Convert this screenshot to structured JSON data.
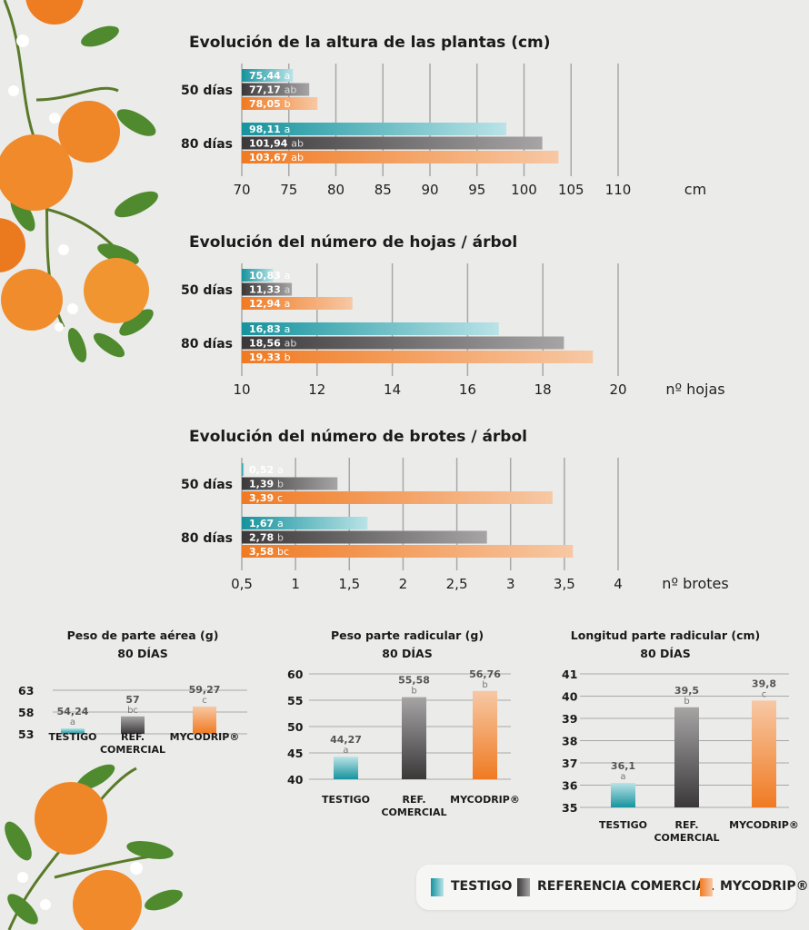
{
  "colors": {
    "testigo": [
      "#16939d",
      "#b9e3e7"
    ],
    "referencia": [
      "#3a3839",
      "#a6a4a5"
    ],
    "mycodrip": [
      "#f07a22",
      "#f7c8a4"
    ],
    "grid": "#a8a8a8",
    "label_dark": "#555555"
  },
  "decorations": [
    "orange-branch-top-left",
    "orange-branch-bottom-left"
  ],
  "legend": [
    {
      "label": "TESTIGO",
      "key": "testigo"
    },
    {
      "label": "REFERENCIA COMERCIAL",
      "key": "referencia"
    },
    {
      "label": "MYCODRIP®",
      "key": "mycodrip"
    }
  ],
  "chart_data": [
    {
      "id": "altura",
      "type": "bar",
      "orientation": "horizontal",
      "title": "Evolución de la altura de las plantas (cm)",
      "unit_label": "cm",
      "categories": [
        "50 días",
        "80 días"
      ],
      "xlim": [
        70,
        110
      ],
      "ticks": [
        "70",
        "75",
        "80",
        "85",
        "90",
        "95",
        "100",
        "105",
        "110"
      ],
      "series": [
        {
          "key": "testigo",
          "values": [
            75.44,
            98.11
          ],
          "labels": [
            "75,44",
            "98,11"
          ],
          "letters": [
            "a",
            "a"
          ]
        },
        {
          "key": "referencia",
          "values": [
            77.17,
            101.94
          ],
          "labels": [
            "77,17",
            "101,94"
          ],
          "letters": [
            "ab",
            "ab"
          ]
        },
        {
          "key": "mycodrip",
          "values": [
            78.05,
            103.67
          ],
          "labels": [
            "78,05",
            "103,67"
          ],
          "letters": [
            "b",
            "ab"
          ]
        }
      ]
    },
    {
      "id": "hojas",
      "type": "bar",
      "orientation": "horizontal",
      "title": "Evolución del número de hojas / árbol",
      "unit_label": "nº hojas",
      "categories": [
        "50 días",
        "80 días"
      ],
      "xlim": [
        10,
        20
      ],
      "ticks": [
        "10",
        "12",
        "14",
        "16",
        "18",
        "20"
      ],
      "series": [
        {
          "key": "testigo",
          "values": [
            10.83,
            16.83
          ],
          "labels": [
            "10,83",
            "16,83"
          ],
          "letters": [
            "a",
            "a"
          ]
        },
        {
          "key": "referencia",
          "values": [
            11.33,
            18.56
          ],
          "labels": [
            "11,33",
            "18,56"
          ],
          "letters": [
            "a",
            "ab"
          ]
        },
        {
          "key": "mycodrip",
          "values": [
            12.94,
            19.33
          ],
          "labels": [
            "12,94",
            "19,33"
          ],
          "letters": [
            "a",
            "b"
          ]
        }
      ]
    },
    {
      "id": "brotes",
      "type": "bar",
      "orientation": "horizontal",
      "title": "Evolución del número de brotes / árbol",
      "unit_label": "nº brotes",
      "categories": [
        "50 días",
        "80 días"
      ],
      "xlim": [
        0.5,
        4
      ],
      "ticks": [
        "0,5",
        "1",
        "1,5",
        "2",
        "2,5",
        "3",
        "3,5",
        "4"
      ],
      "series": [
        {
          "key": "testigo",
          "values": [
            0.52,
            1.67
          ],
          "labels": [
            "0,52",
            "1,67"
          ],
          "letters": [
            "a",
            "a"
          ]
        },
        {
          "key": "referencia",
          "values": [
            1.39,
            2.78
          ],
          "labels": [
            "1,39",
            "2,78"
          ],
          "letters": [
            "b",
            "b"
          ]
        },
        {
          "key": "mycodrip",
          "values": [
            3.39,
            3.58
          ],
          "labels": [
            "3,39",
            "3,58"
          ],
          "letters": [
            "c",
            "bc"
          ]
        }
      ]
    },
    {
      "id": "aerea",
      "type": "bar",
      "orientation": "vertical",
      "title": "Peso de parte aérea (g)",
      "subtitle": "80 DÍAS",
      "ylim": [
        53,
        63
      ],
      "ticks": [
        "63",
        "58",
        "53"
      ],
      "categories": [
        "TESTIGO",
        "REF. COMERCIAL",
        "MYCODRIP®"
      ],
      "series_keys": [
        "testigo",
        "referencia",
        "mycodrip"
      ],
      "values": [
        54.24,
        57,
        59.27
      ],
      "labels": [
        "54,24",
        "57",
        "59,27"
      ],
      "letters": [
        "a",
        "bc",
        "c"
      ]
    },
    {
      "id": "radicular",
      "type": "bar",
      "orientation": "vertical",
      "title": "Peso parte radicular (g)",
      "subtitle": "80 DÍAS",
      "ylim": [
        40,
        60
      ],
      "ticks": [
        "60",
        "55",
        "50",
        "45",
        "40"
      ],
      "categories": [
        "TESTIGO",
        "REF. COMERCIAL",
        "MYCODRIP®"
      ],
      "series_keys": [
        "testigo",
        "referencia",
        "mycodrip"
      ],
      "values": [
        44.27,
        55.58,
        56.76
      ],
      "labels": [
        "44,27",
        "55,58",
        "56,76"
      ],
      "letters": [
        "a",
        "b",
        "b"
      ]
    },
    {
      "id": "longitud",
      "type": "bar",
      "orientation": "vertical",
      "title": "Longitud parte radicular (cm)",
      "subtitle": "80 DÍAS",
      "ylim": [
        35,
        41
      ],
      "ticks": [
        "41",
        "40",
        "39",
        "38",
        "37",
        "36",
        "35"
      ],
      "categories": [
        "TESTIGO",
        "REF. COMERCIAL",
        "MYCODRIP®"
      ],
      "series_keys": [
        "testigo",
        "referencia",
        "mycodrip"
      ],
      "values": [
        36.1,
        39.5,
        39.8
      ],
      "labels": [
        "36,1",
        "39,5",
        "39,8"
      ],
      "letters": [
        "a",
        "b",
        "c"
      ]
    }
  ]
}
